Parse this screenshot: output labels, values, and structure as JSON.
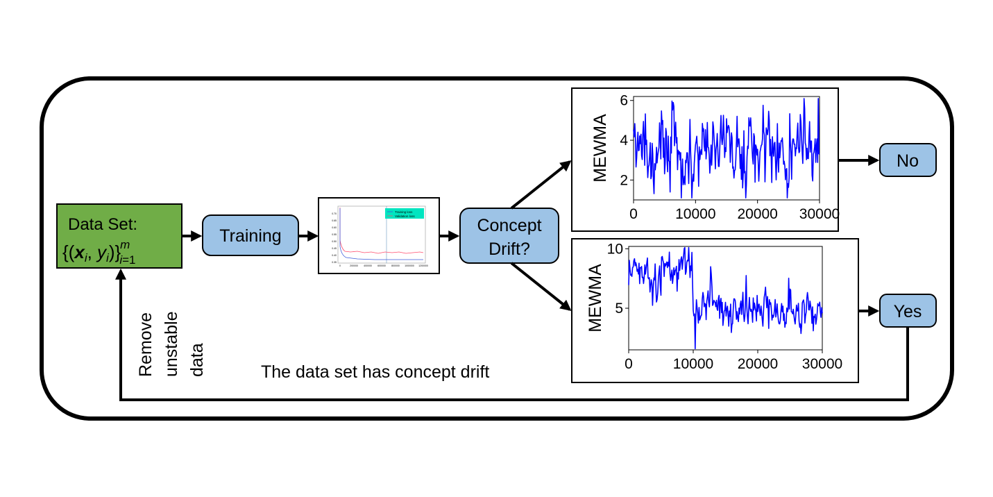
{
  "dataset_box": {
    "title": "Data Set:",
    "formula": "{(x_i, y_i)}_{i=1}^m",
    "fill": "#70ad47"
  },
  "training_box": {
    "label": "Training",
    "fill": "#9dc3e6"
  },
  "loss_thumbnail": {
    "legend": [
      "Training loss",
      "Validation loss"
    ],
    "y_ticks": [
      "0.70",
      "0.65",
      "0.60",
      "0.55",
      "0.50",
      "0.45",
      "0.40",
      "0.35"
    ],
    "x_ticks": [
      "0",
      "200000",
      "400000",
      "600000",
      "800000",
      "1000000",
      "1200000"
    ],
    "colors": {
      "training": "#3b5bdb",
      "validation": "#ff4d6d",
      "legend_bg": "#00e5c0"
    }
  },
  "decision_box": {
    "line1": "Concept",
    "line2": "Drift?",
    "fill": "#9dc3e6"
  },
  "outcome_no": {
    "label": "No"
  },
  "outcome_yes": {
    "label": "Yes"
  },
  "feedback_label": [
    "Remove",
    "unstable",
    "data"
  ],
  "caption": "The data set has concept drift",
  "colors": {
    "series": "#0000ff",
    "stroke": "#000000",
    "box_fill": "#9dc3e6"
  },
  "chart_data": [
    {
      "type": "line",
      "ylabel": "MEWMA",
      "xlim": [
        0,
        30000
      ],
      "ylim": [
        1.0,
        6.2
      ],
      "x_ticks": [
        0,
        10000,
        20000,
        30000
      ],
      "y_ticks": [
        2,
        4,
        6
      ],
      "series": [
        {
          "color": "#0000ff",
          "profile": [
            [
              0,
              3.3
            ],
            [
              30000,
              3.3
            ]
          ],
          "noise": 1.0,
          "seed": 7
        }
      ]
    },
    {
      "type": "line",
      "ylabel": "MEWMA",
      "xlim": [
        0,
        30000
      ],
      "ylim": [
        1.5,
        10.2
      ],
      "x_ticks": [
        0,
        10000,
        20000,
        30000
      ],
      "y_ticks": [
        5,
        10
      ],
      "series": [
        {
          "color": "#0000ff",
          "profile": [
            [
              0,
              8.2
            ],
            [
              3500,
              7.0
            ],
            [
              4500,
              8.0
            ],
            [
              9800,
              8.6
            ],
            [
              10000,
              3.2
            ],
            [
              11500,
              6.0
            ],
            [
              14000,
              5.0
            ],
            [
              30000,
              4.6
            ]
          ],
          "noise": 0.9,
          "seed": 13
        }
      ]
    }
  ]
}
